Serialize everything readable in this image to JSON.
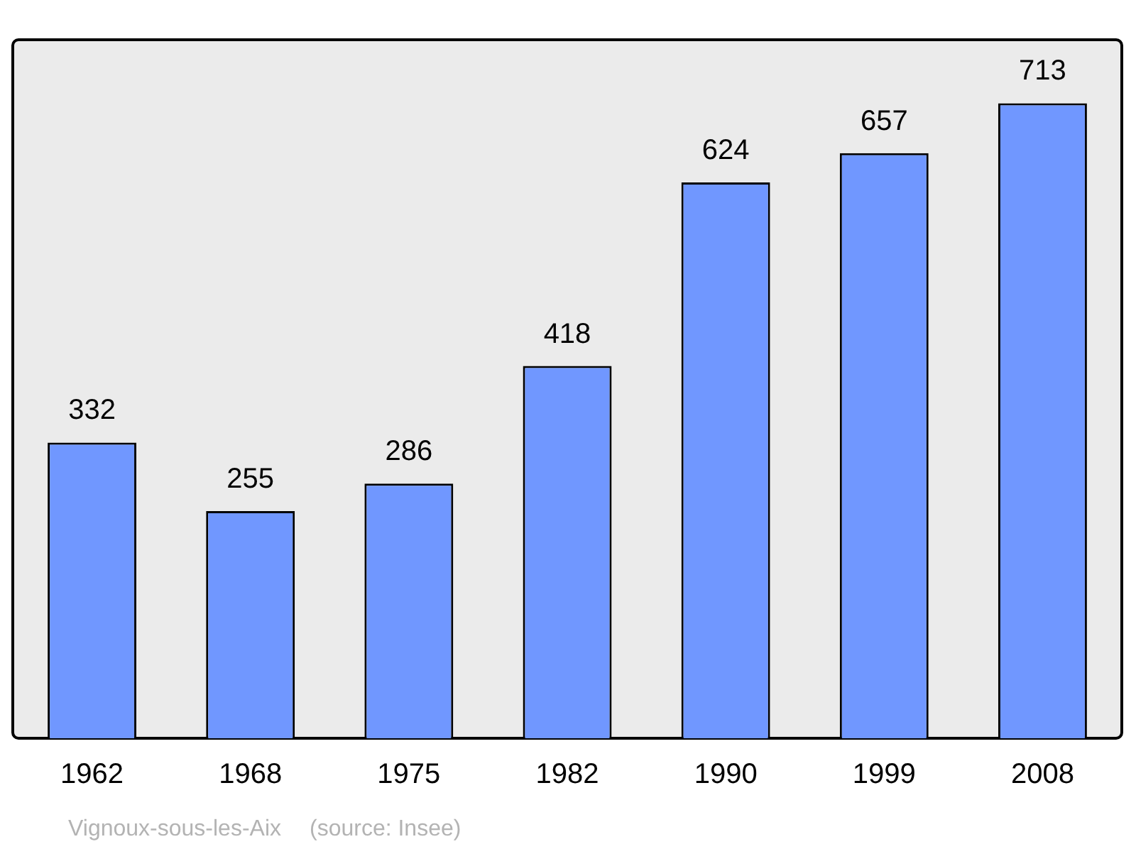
{
  "chart_data": {
    "type": "bar",
    "categories": [
      "1962",
      "1968",
      "1975",
      "1982",
      "1990",
      "1999",
      "2008"
    ],
    "values": [
      332,
      255,
      286,
      418,
      624,
      657,
      713
    ],
    "color": "#7097ff",
    "data_labels": true,
    "grid": false,
    "legend": false,
    "tick_labels": "x",
    "annotations": [
      "Vignoux-sous-les-Aix",
      "(source: Insee)"
    ]
  }
}
